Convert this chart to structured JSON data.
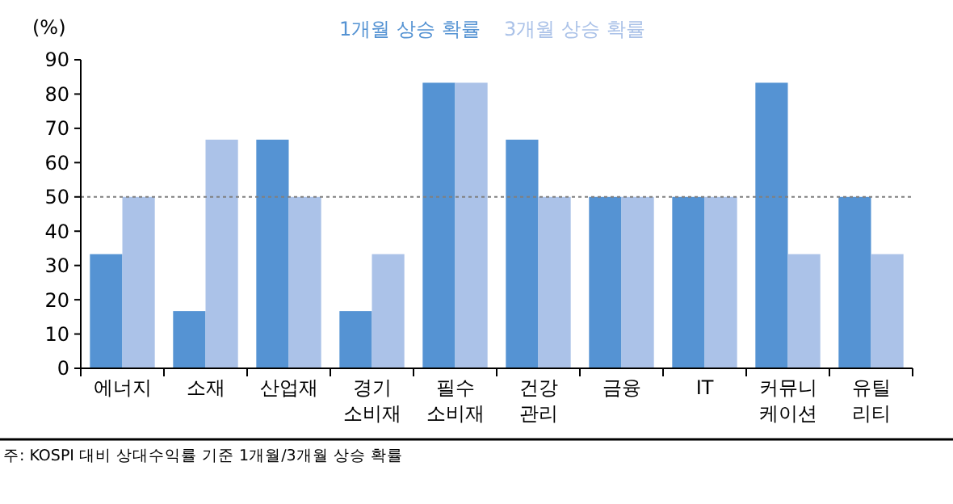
{
  "chart_data": {
    "type": "bar",
    "ylabel": "(%)",
    "categories": [
      "에너지",
      "소재",
      "산업재",
      "경기 소비재",
      "필수 소비재",
      "건강 관리",
      "금융",
      "IT",
      "커뮤니 케이션",
      "유틸 리티"
    ],
    "series": [
      {
        "name": "1개월 상승 확률",
        "color": "#5593d3",
        "values": [
          33.3,
          16.7,
          66.7,
          16.7,
          83.3,
          66.7,
          50,
          50,
          83.3,
          50
        ]
      },
      {
        "name": "3개월 상승 확률",
        "color": "#abc2e8",
        "values": [
          50,
          66.7,
          50,
          33.3,
          83.3,
          50,
          50,
          50,
          33.3,
          33.3
        ]
      }
    ],
    "ylim": [
      0,
      90
    ],
    "yticks": [
      0,
      10,
      20,
      30,
      40,
      50,
      60,
      70,
      80,
      90
    ],
    "ref_lines": [
      {
        "axis": "y",
        "value": 50,
        "color": "#808080",
        "line_style": "dotted"
      }
    ],
    "legend": "top",
    "annotations": [
      "주: KOSPI 대비 상대수익률 기준 1개월/3개월 상승 확률"
    ]
  }
}
